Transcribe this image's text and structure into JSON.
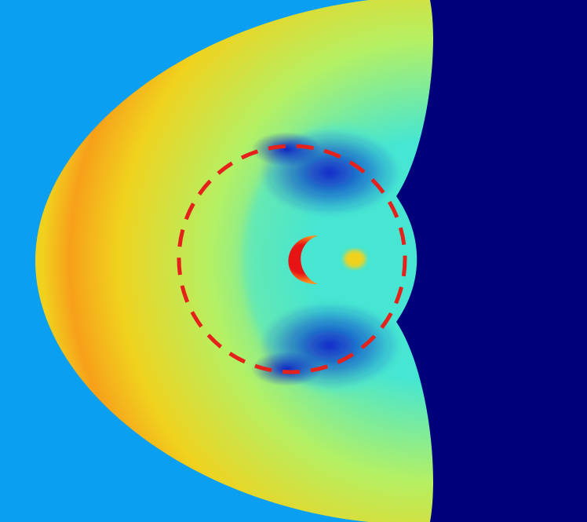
{
  "image": {
    "kind": "simulation-field-colormap",
    "colormap": "jet",
    "colors": {
      "background": "#0a9ff0",
      "right_region": "#00007a",
      "wave_outer": "#f0d21e",
      "wave_core": "#f7a01a",
      "wave_mid": "#b4f064",
      "wave_edge": "#46e6d2",
      "low_trough": "#0a1ec8",
      "hot_spot": "#e61414",
      "hot_spot_edge": "#ff8c1e",
      "dashed_circle": "#e4211b"
    }
  }
}
